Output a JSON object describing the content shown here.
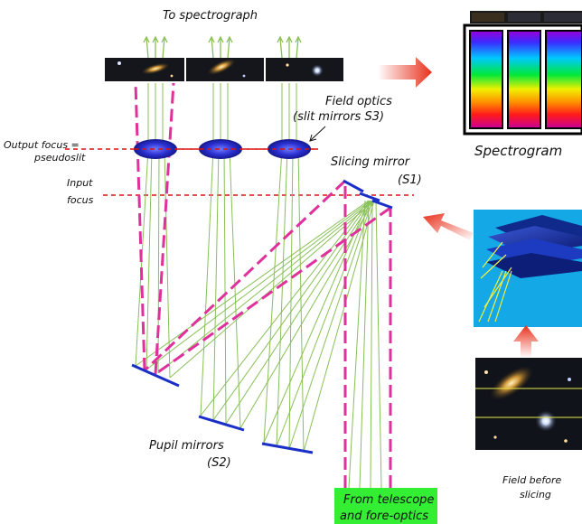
{
  "labels": {
    "to_spectrograph": "To spectrograph",
    "field_optics_line1": "Field optics",
    "field_optics_line2": "(slit mirrors S3)",
    "output_focus_line1": "Output focus =",
    "output_focus_line2": "pseudoslit",
    "input_focus_line1": "Input",
    "input_focus_line2": "focus",
    "slicing_mirror_line1": "Slicing mirror",
    "slicing_mirror_line2": "(S1)",
    "spectrogram": "Spectrogram",
    "pupil_mirrors_line1": "Pupil mirrors",
    "pupil_mirrors_line2": "(S2)",
    "from_telescope_line1": "From telescope",
    "from_telescope_line2": "and fore-optics",
    "field_before_line1": "Field before",
    "field_before_line2": "slicing"
  },
  "colors": {
    "beam_magenta": "#e0309c",
    "ray_green": "#88c057",
    "focus_red": "#dd1111",
    "mirror_blue": "#1a2ec8",
    "lens_blue": "#2b2fd0",
    "arrow_red": "#e8301c",
    "green_box": "#33ee33",
    "cyan_panel": "#14a8e6"
  },
  "icons": {
    "right_arrow": "red-gradient-arrow-right",
    "up_left_arrow": "red-gradient-arrow-up-left",
    "up_arrow": "red-gradient-arrow-up"
  }
}
